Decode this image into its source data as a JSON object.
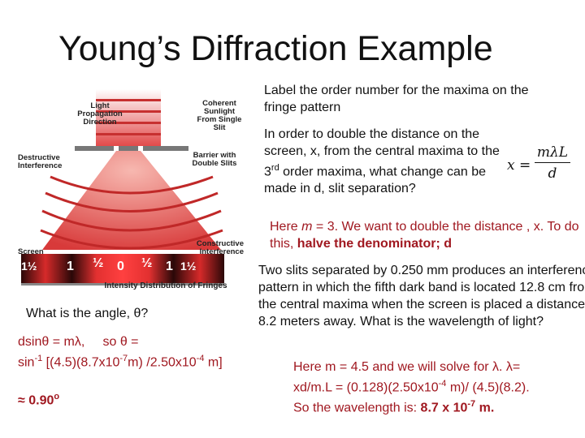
{
  "slide": {
    "title": "Young’s Diffraction Example"
  },
  "diagram": {
    "labels": {
      "light_direction": "Light Propagation Direction",
      "coherent_sunlight": "Coherent Sunlight From Single Slit",
      "destructive": "Destructive Interference",
      "barrier": "Barrier with Double Slits",
      "screen": "Screen",
      "constructive": "Constructive Interference",
      "intensity": "Intensity Distribution of Fringes"
    },
    "fringe_orders": [
      "1½",
      "1",
      "½",
      "0",
      "½",
      "1",
      "1½"
    ]
  },
  "right": {
    "q1": "Label the order number for the maxima on the fringe pattern",
    "q2_a": "In order to double the distance on the screen, x, from the central maxima to the 3",
    "q2_sup": "rd",
    "q2_b": " order maxima, what change can be made in d, slit separation?",
    "a2_a": "Here ",
    "a2_m": "m",
    "a2_b": " = 3. We want to double the distance , x. To do this, ",
    "a2_bold": "halve the denominator; d",
    "formula_lhs": "x =",
    "formula_num": "mλL",
    "formula_den": "d",
    "problem": "Two slits separated by 0.250 mm produces an interference pattern in which the fifth dark band is located 12.8 cm from the central maxima when the screen is placed a distance of 8.2 meters away. What is the wavelength of light?",
    "sol_l1": "Here m = 4.5 and we will solve for λ. λ=",
    "sol_l2a": "xd/m.L = (0.128)(2.50x10",
    "sol_l2sup": "-4",
    "sol_l2b": " m)/ (4.5)(8.2).",
    "sol_l3a": "So the wavelength is: ",
    "sol_l3b": "8.7 x 10",
    "sol_l3sup": "-7",
    "sol_l3c": " m."
  },
  "left": {
    "question": "What is the angle, θ?",
    "line1": "dsinθ = mλ,     so θ =",
    "line2a": "sin",
    "line2sup": "-1",
    "line2b": " [(4.5)(8.7x10",
    "line2sup2": "-7",
    "line2c": "m) /2.50x10",
    "line2sup3": "-4",
    "line2d": " m]",
    "answer_a": "≈ 0.90",
    "answer_sup": "o"
  }
}
